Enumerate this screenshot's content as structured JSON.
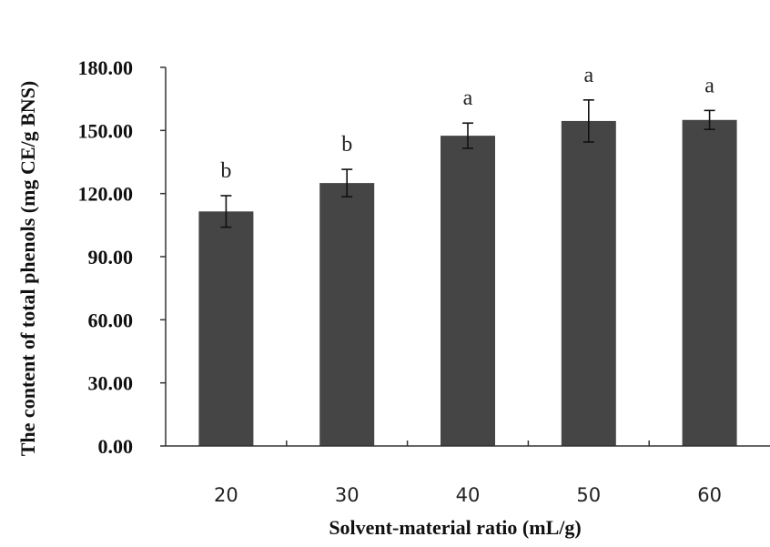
{
  "chart_data": {
    "type": "bar",
    "title": "",
    "xlabel": "Solvent-material ratio (mL/g)",
    "ylabel": "The content of total phenols (mg CE/g BNS)",
    "categories": [
      "20",
      "30",
      "40",
      "50",
      "60"
    ],
    "series": [
      {
        "values": [
          111.5,
          125.0,
          147.5,
          154.5,
          155.0
        ],
        "error": [
          7.5,
          6.5,
          6.0,
          10.0,
          4.5
        ],
        "significance": [
          "b",
          "b",
          "a",
          "a",
          "a"
        ],
        "color": "#454545"
      }
    ],
    "ylim": [
      0,
      180
    ],
    "yticks": [
      "0.00",
      "30.00",
      "60.00",
      "90.00",
      "120.00",
      "150.00",
      "180.00"
    ],
    "ytick_values": [
      0,
      30,
      60,
      90,
      120,
      150,
      180
    ],
    "grid": false,
    "legend": "none"
  }
}
